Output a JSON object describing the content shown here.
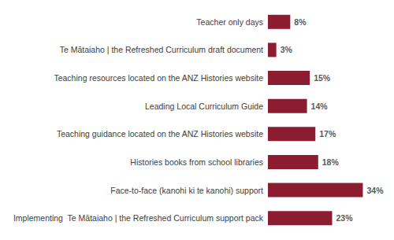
{
  "chart_data": {
    "type": "bar",
    "orientation": "horizontal",
    "categories": [
      "Teacher only days",
      "Te Mātaiaho | the Refreshed Curriculum draft document",
      "Teaching resources located on the ANZ Histories website",
      "Leading Local Curriculum Guide",
      "Teaching guidance located on the ANZ Histories website",
      "Histories books from school libraries",
      "Face-to-face (kanohi ki te kanohi) support",
      "Implementing  Te Mātaiaho | the Refreshed Curriculum support pack"
    ],
    "values": [
      8,
      3,
      15,
      14,
      17,
      18,
      34,
      23
    ],
    "value_labels": [
      "8%",
      "3%",
      "15%",
      "14%",
      "17%",
      "18%",
      "34%",
      "23%"
    ],
    "color": "#8c1d31",
    "data_labels": true,
    "tick_labels": "y",
    "grid": false
  }
}
